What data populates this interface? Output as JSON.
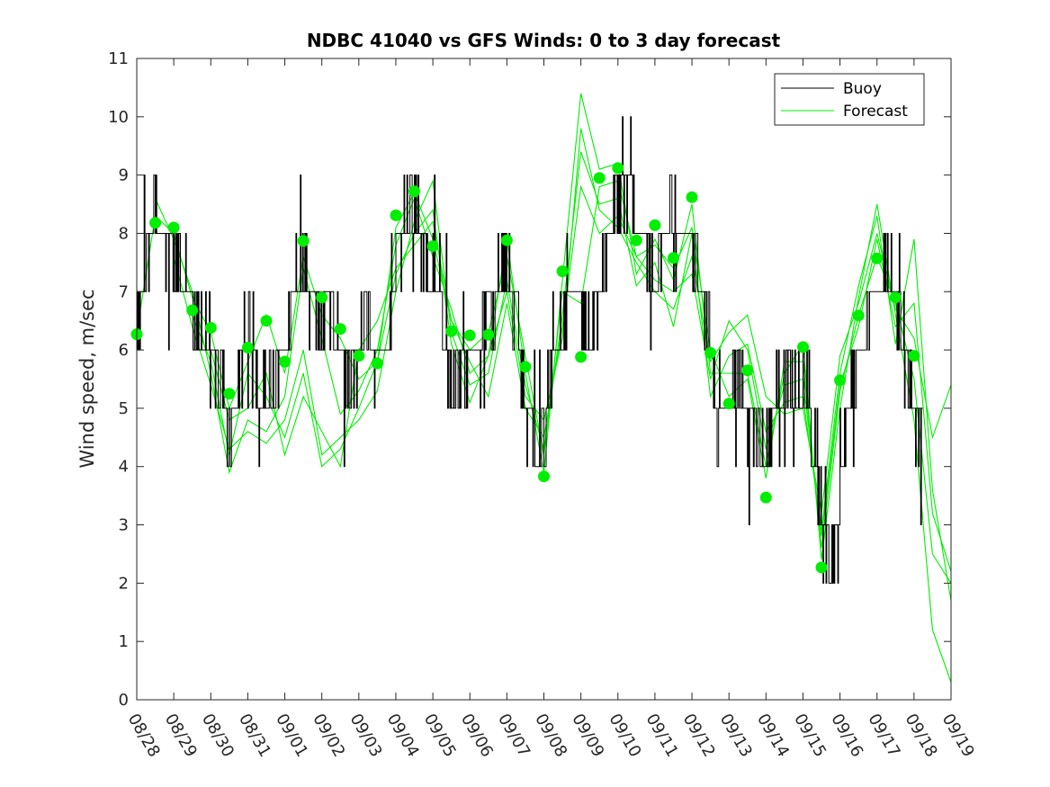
{
  "chart_data": {
    "type": "line",
    "title": "NDBC 41040 vs GFS Winds: 0 to 3 day forecast",
    "xlabel": "",
    "ylabel": "Wind speed, m/sec",
    "xlim": [
      0,
      22
    ],
    "ylim": [
      0,
      11
    ],
    "yticks": [
      0,
      1,
      2,
      3,
      4,
      5,
      6,
      7,
      8,
      9,
      10,
      11
    ],
    "xtick_labels": [
      "08/28",
      "08/29",
      "08/30",
      "08/31",
      "09/01",
      "09/02",
      "09/03",
      "09/04",
      "09/05",
      "09/06",
      "09/07",
      "09/08",
      "09/09",
      "09/10",
      "09/11",
      "09/12",
      "09/13",
      "09/14",
      "09/15",
      "09/16",
      "09/17",
      "09/18",
      "09/19"
    ],
    "legend": {
      "placement": "top-right",
      "entries": [
        {
          "name": "Buoy",
          "color": "#000000"
        },
        {
          "name": "Forecast",
          "color": "#00ee00"
        }
      ]
    },
    "colors": {
      "buoy": "#000000",
      "forecast": "#00ee00",
      "points": "#00ee00"
    },
    "buoy_trend": [
      [
        0.0,
        6
      ],
      [
        0.25,
        7.5
      ],
      [
        0.5,
        8.5
      ],
      [
        0.75,
        8
      ],
      [
        1.0,
        7.5
      ],
      [
        1.25,
        7
      ],
      [
        1.5,
        6.5
      ],
      [
        1.75,
        6.5
      ],
      [
        2.0,
        6
      ],
      [
        2.25,
        5.5
      ],
      [
        2.5,
        4.5
      ],
      [
        2.75,
        5.5
      ],
      [
        3.0,
        6.5
      ],
      [
        3.25,
        5.5
      ],
      [
        3.5,
        5
      ],
      [
        3.75,
        5.5
      ],
      [
        4.0,
        6
      ],
      [
        4.25,
        7
      ],
      [
        4.5,
        7.5
      ],
      [
        4.75,
        7
      ],
      [
        5.0,
        6.5
      ],
      [
        5.25,
        6.5
      ],
      [
        5.5,
        6
      ],
      [
        5.75,
        5.5
      ],
      [
        6.0,
        6
      ],
      [
        6.25,
        6.5
      ],
      [
        6.5,
        6
      ],
      [
        6.75,
        6
      ],
      [
        7.0,
        7.5
      ],
      [
        7.25,
        8.5
      ],
      [
        7.5,
        8.5
      ],
      [
        7.75,
        7.5
      ],
      [
        8.0,
        7.5
      ],
      [
        8.25,
        6.5
      ],
      [
        8.5,
        5.5
      ],
      [
        8.75,
        5.5
      ],
      [
        9.0,
        6
      ],
      [
        9.25,
        6
      ],
      [
        9.5,
        6.5
      ],
      [
        9.75,
        7
      ],
      [
        10.0,
        7.5
      ],
      [
        10.25,
        6.5
      ],
      [
        10.5,
        5
      ],
      [
        10.75,
        4
      ],
      [
        11.0,
        4.5
      ],
      [
        11.25,
        6
      ],
      [
        11.5,
        6.5
      ],
      [
        11.75,
        7
      ],
      [
        12.0,
        7
      ],
      [
        12.25,
        6
      ],
      [
        12.5,
        7
      ],
      [
        12.75,
        8
      ],
      [
        13.0,
        8.5
      ],
      [
        13.25,
        8.5
      ],
      [
        13.5,
        8
      ],
      [
        13.75,
        8
      ],
      [
        14.0,
        7
      ],
      [
        14.25,
        8
      ],
      [
        14.5,
        8.5
      ],
      [
        14.75,
        8
      ],
      [
        15.0,
        8
      ],
      [
        15.25,
        7
      ],
      [
        15.5,
        6
      ],
      [
        15.75,
        5
      ],
      [
        16.0,
        5
      ],
      [
        16.25,
        5.5
      ],
      [
        16.5,
        5
      ],
      [
        16.75,
        4.5
      ],
      [
        17.0,
        4
      ],
      [
        17.25,
        5
      ],
      [
        17.5,
        5.5
      ],
      [
        17.75,
        5.5
      ],
      [
        18.0,
        5.5
      ],
      [
        18.25,
        4.5
      ],
      [
        18.5,
        3
      ],
      [
        18.75,
        2
      ],
      [
        19.0,
        3.5
      ],
      [
        19.25,
        5
      ],
      [
        19.5,
        6
      ],
      [
        19.75,
        6.5
      ],
      [
        20.0,
        7
      ],
      [
        20.25,
        7.5
      ],
      [
        20.5,
        7
      ],
      [
        20.75,
        6
      ],
      [
        21.0,
        5
      ],
      [
        21.25,
        4.5
      ]
    ],
    "forecast_series": [
      {
        "name": "Forecast",
        "values": [
          [
            0.0,
            6.3
          ],
          [
            0.5,
            8.3
          ],
          [
            1.0,
            8.0
          ],
          [
            1.5,
            6.9
          ],
          [
            2.0,
            6.3
          ],
          [
            2.5,
            5.0
          ],
          [
            3.0,
            5.8
          ],
          [
            3.5,
            6.6
          ],
          [
            4.0,
            5.6
          ],
          [
            4.5,
            7.6
          ],
          [
            5.0,
            6.6
          ],
          [
            5.5,
            6.2
          ],
          [
            6.0,
            5.5
          ],
          [
            6.5,
            5.8
          ],
          [
            7.0,
            8.1
          ],
          [
            7.5,
            8.7
          ],
          [
            8.0,
            7.9
          ],
          [
            8.5,
            6.5
          ],
          [
            9.0,
            6.0
          ],
          [
            9.5,
            6.3
          ],
          [
            10.0,
            7.6
          ],
          [
            10.5,
            5.9
          ],
          [
            11.0,
            4.2
          ],
          [
            11.5,
            7.0
          ],
          [
            12.0,
            6.8
          ],
          [
            12.5,
            8.8
          ],
          [
            13.0,
            8.9
          ],
          [
            13.5,
            7.6
          ],
          [
            14.0,
            7.8
          ],
          [
            14.5,
            7.4
          ],
          [
            15.0,
            8.1
          ],
          [
            15.5,
            6.0
          ],
          [
            16.0,
            5.2
          ],
          [
            16.5,
            5.5
          ],
          [
            17.0,
            3.8
          ],
          [
            17.5,
            5.8
          ],
          [
            18.0,
            5.8
          ],
          [
            18.5,
            2.6
          ],
          [
            19.0,
            5.3
          ],
          [
            19.5,
            6.6
          ],
          [
            20.0,
            7.6
          ],
          [
            20.5,
            6.8
          ],
          [
            21.0,
            5.5
          ],
          [
            21.5,
            2.5
          ],
          [
            22.0,
            2.0
          ]
        ]
      },
      {
        "name": "Forecast",
        "values": [
          [
            0.5,
            8.6
          ],
          [
            1.0,
            7.9
          ],
          [
            1.5,
            7.0
          ],
          [
            2.0,
            5.6
          ],
          [
            2.5,
            3.9
          ],
          [
            3.0,
            4.8
          ],
          [
            3.5,
            4.6
          ],
          [
            4.0,
            5.2
          ],
          [
            4.5,
            7.4
          ],
          [
            5.0,
            6.2
          ],
          [
            5.5,
            4.9
          ],
          [
            6.0,
            5.3
          ],
          [
            6.5,
            6.0
          ],
          [
            7.0,
            7.8
          ],
          [
            7.5,
            8.6
          ],
          [
            8.0,
            7.6
          ],
          [
            8.5,
            6.7
          ],
          [
            9.0,
            5.6
          ],
          [
            9.5,
            5.9
          ],
          [
            10.0,
            7.9
          ],
          [
            10.5,
            5.6
          ],
          [
            11.0,
            3.9
          ],
          [
            11.5,
            7.2
          ],
          [
            12.0,
            10.4
          ],
          [
            12.5,
            9.1
          ],
          [
            13.0,
            9.2
          ],
          [
            13.5,
            7.3
          ],
          [
            14.0,
            7.9
          ],
          [
            14.5,
            7.2
          ],
          [
            15.0,
            8.5
          ],
          [
            15.5,
            5.6
          ],
          [
            16.0,
            5.6
          ],
          [
            16.5,
            5.6
          ],
          [
            17.0,
            4.0
          ],
          [
            17.5,
            5.6
          ],
          [
            18.0,
            6.1
          ],
          [
            18.5,
            2.4
          ],
          [
            19.0,
            5.0
          ],
          [
            19.5,
            6.9
          ],
          [
            20.0,
            8.5
          ],
          [
            20.5,
            6.6
          ],
          [
            21.0,
            4.8
          ],
          [
            21.5,
            1.2
          ],
          [
            22.0,
            0.3
          ]
        ]
      },
      {
        "name": "Forecast",
        "values": [
          [
            1.0,
            7.6
          ],
          [
            1.5,
            6.4
          ],
          [
            2.0,
            5.4
          ],
          [
            2.5,
            4.3
          ],
          [
            3.0,
            4.6
          ],
          [
            3.5,
            4.4
          ],
          [
            4.0,
            4.8
          ],
          [
            4.5,
            6.0
          ],
          [
            5.0,
            4.2
          ],
          [
            5.5,
            4.5
          ],
          [
            6.0,
            4.8
          ],
          [
            6.5,
            5.3
          ],
          [
            7.0,
            7.0
          ],
          [
            7.5,
            8.2
          ],
          [
            8.0,
            8.9
          ],
          [
            8.5,
            6.3
          ],
          [
            9.0,
            5.4
          ],
          [
            9.5,
            5.6
          ],
          [
            10.0,
            7.2
          ],
          [
            10.5,
            5.4
          ],
          [
            11.0,
            4.3
          ],
          [
            11.5,
            6.6
          ],
          [
            12.0,
            9.4
          ],
          [
            12.5,
            8.5
          ],
          [
            13.0,
            8.6
          ],
          [
            13.5,
            7.1
          ],
          [
            14.0,
            7.5
          ],
          [
            14.5,
            6.4
          ],
          [
            15.0,
            8.0
          ],
          [
            15.5,
            5.2
          ],
          [
            16.0,
            5.9
          ],
          [
            16.5,
            6.1
          ],
          [
            17.0,
            4.6
          ],
          [
            17.5,
            5.1
          ],
          [
            18.0,
            5.2
          ],
          [
            18.5,
            2.9
          ],
          [
            19.0,
            5.6
          ],
          [
            19.5,
            7.1
          ],
          [
            20.0,
            8.3
          ],
          [
            20.5,
            6.1
          ],
          [
            21.0,
            7.9
          ],
          [
            21.5,
            3.6
          ],
          [
            22.0,
            1.7
          ]
        ]
      },
      {
        "name": "Forecast",
        "values": [
          [
            1.5,
            6.6
          ],
          [
            2.0,
            5.8
          ],
          [
            2.5,
            4.2
          ],
          [
            3.0,
            5.6
          ],
          [
            3.5,
            5.2
          ],
          [
            4.0,
            4.5
          ],
          [
            4.5,
            5.6
          ],
          [
            5.0,
            4.0
          ],
          [
            5.5,
            4.3
          ],
          [
            6.0,
            5.0
          ],
          [
            6.5,
            5.8
          ],
          [
            7.0,
            7.3
          ],
          [
            7.5,
            8.0
          ],
          [
            8.0,
            8.4
          ],
          [
            8.5,
            6.1
          ],
          [
            9.0,
            5.1
          ],
          [
            9.5,
            5.9
          ],
          [
            10.0,
            7.0
          ],
          [
            10.5,
            5.2
          ],
          [
            11.0,
            4.8
          ],
          [
            11.5,
            6.2
          ],
          [
            12.0,
            9.8
          ],
          [
            12.5,
            8.4
          ],
          [
            13.0,
            8.1
          ],
          [
            13.5,
            7.5
          ],
          [
            14.0,
            7.0
          ],
          [
            14.5,
            6.7
          ],
          [
            15.0,
            7.6
          ],
          [
            15.5,
            5.8
          ],
          [
            16.0,
            6.3
          ],
          [
            16.5,
            6.6
          ],
          [
            17.0,
            5.2
          ],
          [
            17.5,
            4.9
          ],
          [
            18.0,
            5.0
          ],
          [
            18.5,
            3.2
          ],
          [
            19.0,
            5.9
          ],
          [
            19.5,
            6.8
          ],
          [
            20.0,
            8.0
          ],
          [
            20.5,
            6.7
          ],
          [
            21.0,
            6.2
          ],
          [
            21.5,
            4.5
          ],
          [
            22.0,
            5.4
          ]
        ]
      },
      {
        "name": "Forecast",
        "values": [
          [
            2.0,
            6.0
          ],
          [
            2.5,
            4.8
          ],
          [
            3.0,
            5.0
          ],
          [
            3.5,
            5.6
          ],
          [
            4.0,
            4.2
          ],
          [
            4.5,
            5.2
          ],
          [
            5.0,
            4.6
          ],
          [
            5.5,
            4.0
          ],
          [
            6.0,
            6.0
          ],
          [
            6.5,
            6.5
          ],
          [
            7.0,
            7.4
          ],
          [
            7.5,
            7.8
          ],
          [
            8.0,
            8.2
          ],
          [
            8.5,
            6.5
          ],
          [
            9.0,
            5.8
          ],
          [
            9.5,
            5.2
          ],
          [
            10.0,
            6.8
          ],
          [
            10.5,
            5.0
          ],
          [
            11.0,
            4.5
          ],
          [
            11.5,
            6.4
          ],
          [
            12.0,
            8.8
          ],
          [
            12.5,
            8.0
          ],
          [
            13.0,
            8.3
          ],
          [
            13.5,
            7.6
          ],
          [
            14.0,
            7.2
          ],
          [
            14.5,
            7.0
          ],
          [
            15.0,
            7.3
          ],
          [
            15.5,
            5.5
          ],
          [
            16.0,
            6.5
          ],
          [
            16.5,
            6.0
          ],
          [
            17.0,
            4.3
          ],
          [
            17.5,
            5.4
          ],
          [
            18.0,
            5.5
          ],
          [
            18.5,
            2.8
          ],
          [
            19.0,
            5.4
          ],
          [
            19.5,
            6.4
          ],
          [
            20.0,
            7.9
          ],
          [
            20.5,
            6.4
          ],
          [
            21.0,
            6.8
          ],
          [
            21.5,
            3.2
          ],
          [
            22.0,
            2.2
          ]
        ]
      }
    ],
    "observation_points": [
      [
        0.0,
        6.27
      ],
      [
        0.5,
        8.18
      ],
      [
        1.0,
        8.1
      ],
      [
        1.5,
        6.68
      ],
      [
        2.0,
        6.38
      ],
      [
        2.5,
        5.25
      ],
      [
        3.0,
        6.04
      ],
      [
        3.5,
        6.5
      ],
      [
        4.0,
        5.8
      ],
      [
        4.5,
        7.87
      ],
      [
        5.0,
        6.9
      ],
      [
        5.5,
        6.36
      ],
      [
        6.0,
        5.9
      ],
      [
        6.5,
        5.77
      ],
      [
        7.0,
        8.31
      ],
      [
        7.5,
        8.72
      ],
      [
        8.0,
        7.78
      ],
      [
        8.5,
        6.32
      ],
      [
        9.0,
        6.25
      ],
      [
        9.5,
        6.26
      ],
      [
        10.0,
        7.88
      ],
      [
        10.5,
        5.71
      ],
      [
        11.0,
        3.83
      ],
      [
        11.5,
        7.35
      ],
      [
        12.0,
        5.88
      ],
      [
        12.5,
        8.95
      ],
      [
        13.0,
        9.12
      ],
      [
        13.5,
        7.88
      ],
      [
        14.0,
        8.14
      ],
      [
        14.5,
        7.58
      ],
      [
        15.0,
        8.62
      ],
      [
        15.5,
        5.95
      ],
      [
        16.0,
        5.08
      ],
      [
        16.5,
        5.65
      ],
      [
        17.0,
        3.47
      ],
      [
        18.0,
        6.05
      ],
      [
        18.5,
        2.27
      ],
      [
        19.0,
        5.48
      ],
      [
        19.5,
        6.59
      ],
      [
        20.0,
        7.57
      ],
      [
        20.5,
        6.9
      ],
      [
        21.0,
        5.9
      ]
    ]
  }
}
